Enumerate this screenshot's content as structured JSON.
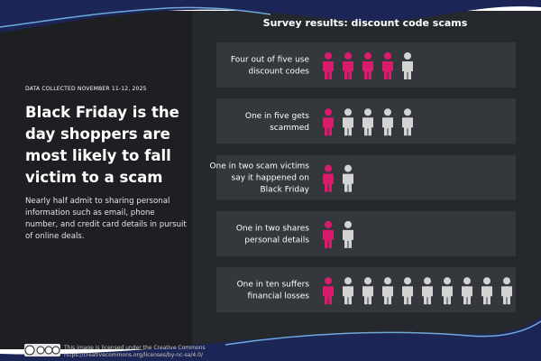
{
  "chart_data": {
    "type": "pictogram",
    "title": "Survey results: discount code scams",
    "categories": [
      [
        "Four out of five use",
        "discount codes"
      ],
      [
        "One in five gets",
        "scammed"
      ],
      [
        "One in two scam victims",
        "say it happened on",
        "Black Friday"
      ],
      [
        "One in two shares",
        "personal details"
      ],
      [
        "One in ten suffers",
        "financial losses"
      ]
    ],
    "values": [
      4,
      1,
      1,
      1,
      1
    ],
    "totals": [
      5,
      5,
      2,
      2,
      10
    ],
    "color": "#d81b6a",
    "rest_color": "#d4d4d4"
  },
  "panel": {
    "date": "DATA COLLECTED NOVEMBER 11-12, 2025",
    "headline": "Black Friday is the day shoppers are most likely to fall victim to a scam",
    "body": "Nearly half admit to sharing personal information such as email, phone number, and credit card details in pursuit of online deals."
  },
  "footer": {
    "license": "This image is licensed under the Creative Commons",
    "url": "https://creativecommons.org/licenses/by-nc-sa/4.0/"
  }
}
